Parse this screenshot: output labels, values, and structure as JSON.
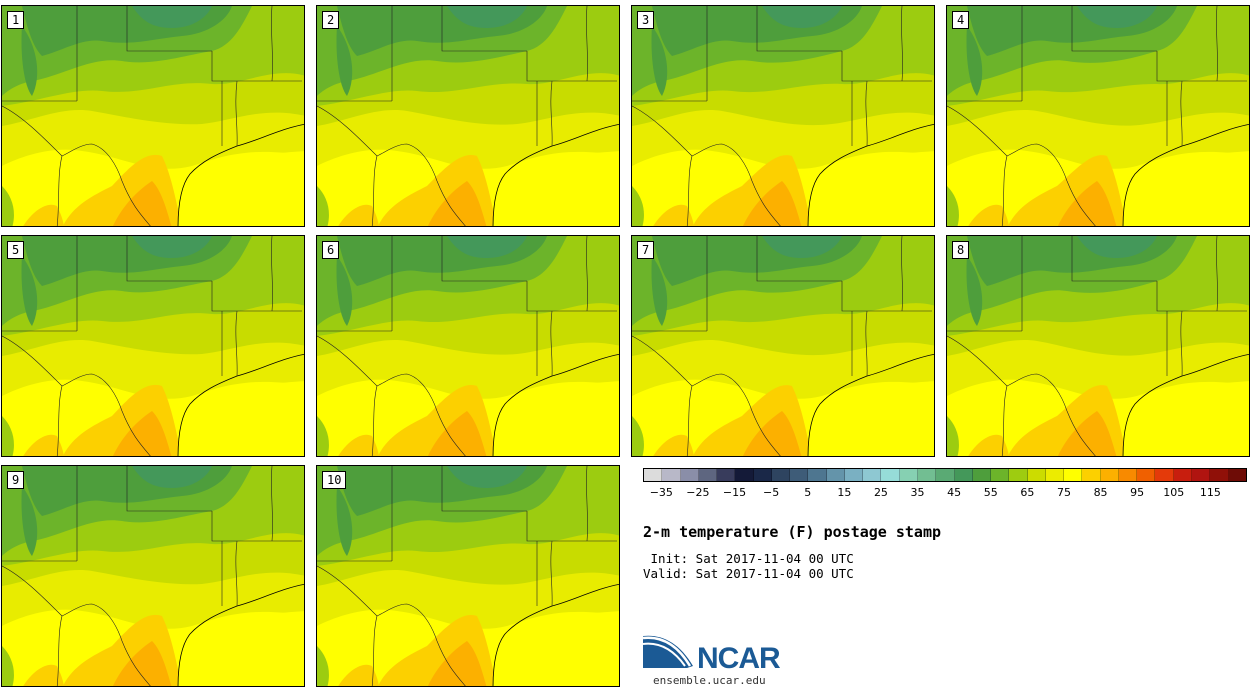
{
  "panels": [
    {
      "label": "1"
    },
    {
      "label": "2"
    },
    {
      "label": "3"
    },
    {
      "label": "4"
    },
    {
      "label": "5"
    },
    {
      "label": "6"
    },
    {
      "label": "7"
    },
    {
      "label": "8"
    },
    {
      "label": "9"
    },
    {
      "label": "10"
    }
  ],
  "colorbar": {
    "colors": [
      "#dcdcdc",
      "#b8b8c8",
      "#8a8ea8",
      "#5e6680",
      "#383c5c",
      "#141a38",
      "#1a2848",
      "#2e4460",
      "#3e5c78",
      "#4e7690",
      "#6494aa",
      "#7ab0c2",
      "#8ec8d2",
      "#96dcd8",
      "#86d0b2",
      "#72be92",
      "#5aaa74",
      "#44985a",
      "#4e9e3c",
      "#6cb42a",
      "#9ecc10",
      "#ccdc00",
      "#ecec00",
      "#ffff00",
      "#fcd000",
      "#fcb000",
      "#f88a00",
      "#f06000",
      "#e43a0a",
      "#c81e0e",
      "#b01410",
      "#901008",
      "#6e0c06"
    ],
    "ticks": [
      "−35",
      "−25",
      "−15",
      "−5",
      "5",
      "15",
      "25",
      "35",
      "45",
      "55",
      "65",
      "75",
      "85",
      "95",
      "105",
      "115"
    ]
  },
  "title": "2-m temperature (F) postage stamp",
  "init_line": " Init: Sat 2017-11-04 00 UTC",
  "valid_line": "Valid: Sat 2017-11-04 00 UTC",
  "logo": {
    "wordmark": "NCAR",
    "url": "ensemble.ucar.edu"
  }
}
